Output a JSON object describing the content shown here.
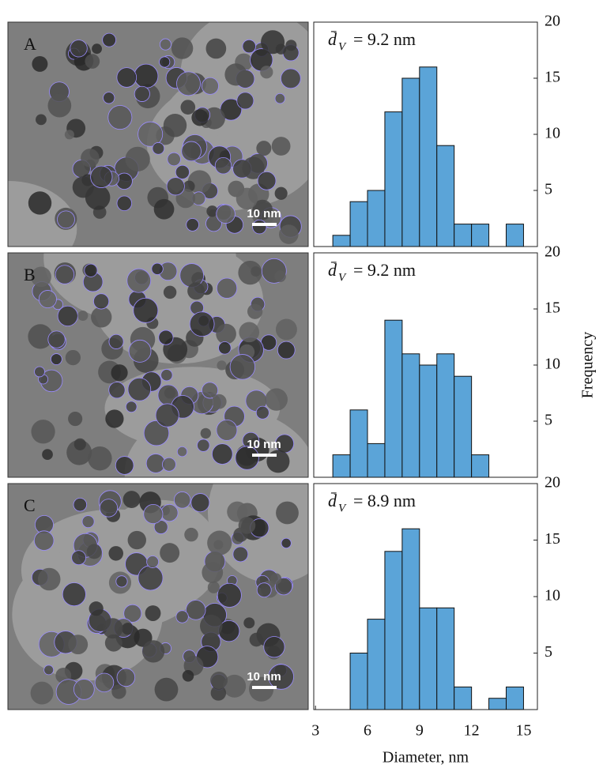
{
  "chart_data": [
    {
      "type": "histogram",
      "panel_label": "A",
      "image_scale_label": "10 nm",
      "annotation_symbol": "d̄",
      "annotation_subscript": "V",
      "annotation": "= 9.2 nm",
      "bins": [
        4,
        5,
        6,
        7,
        8,
        9,
        10,
        11,
        12,
        13,
        14,
        15
      ],
      "values": [
        1,
        4,
        5,
        12,
        15,
        16,
        9,
        2,
        2,
        0,
        2
      ],
      "color": "#5ba4d8",
      "xlim": [
        2.9,
        15.8
      ],
      "ylim": [
        0,
        20
      ],
      "yticks": [
        5,
        10,
        15,
        20
      ]
    },
    {
      "type": "histogram",
      "panel_label": "B",
      "image_scale_label": "10 nm",
      "annotation_symbol": "d̄",
      "annotation_subscript": "V",
      "annotation": "= 9.2 nm",
      "bins": [
        4,
        5,
        6,
        7,
        8,
        9,
        10,
        11,
        12,
        13
      ],
      "values": [
        2,
        6,
        3,
        14,
        11,
        10,
        11,
        9,
        2
      ],
      "color": "#5ba4d8",
      "xlim": [
        2.9,
        15.8
      ],
      "ylim": [
        0,
        20
      ],
      "yticks": [
        5,
        10,
        15,
        20
      ],
      "ylabel": "Frequency"
    },
    {
      "type": "histogram",
      "panel_label": "C",
      "image_scale_label": "10 nm",
      "annotation_symbol": "d̄",
      "annotation_subscript": "V",
      "annotation": "= 8.9 nm",
      "bins": [
        5,
        6,
        7,
        8,
        9,
        10,
        11,
        12,
        13,
        14,
        15
      ],
      "values": [
        5,
        8,
        14,
        16,
        9,
        9,
        2,
        0,
        1,
        2
      ],
      "color": "#5ba4d8",
      "xlim": [
        2.9,
        15.8
      ],
      "ylim": [
        0,
        20
      ],
      "yticks": [
        5,
        10,
        15,
        20
      ],
      "xticks": [
        3,
        6,
        9,
        12,
        15
      ],
      "xlabel": "Diameter, nm"
    }
  ]
}
